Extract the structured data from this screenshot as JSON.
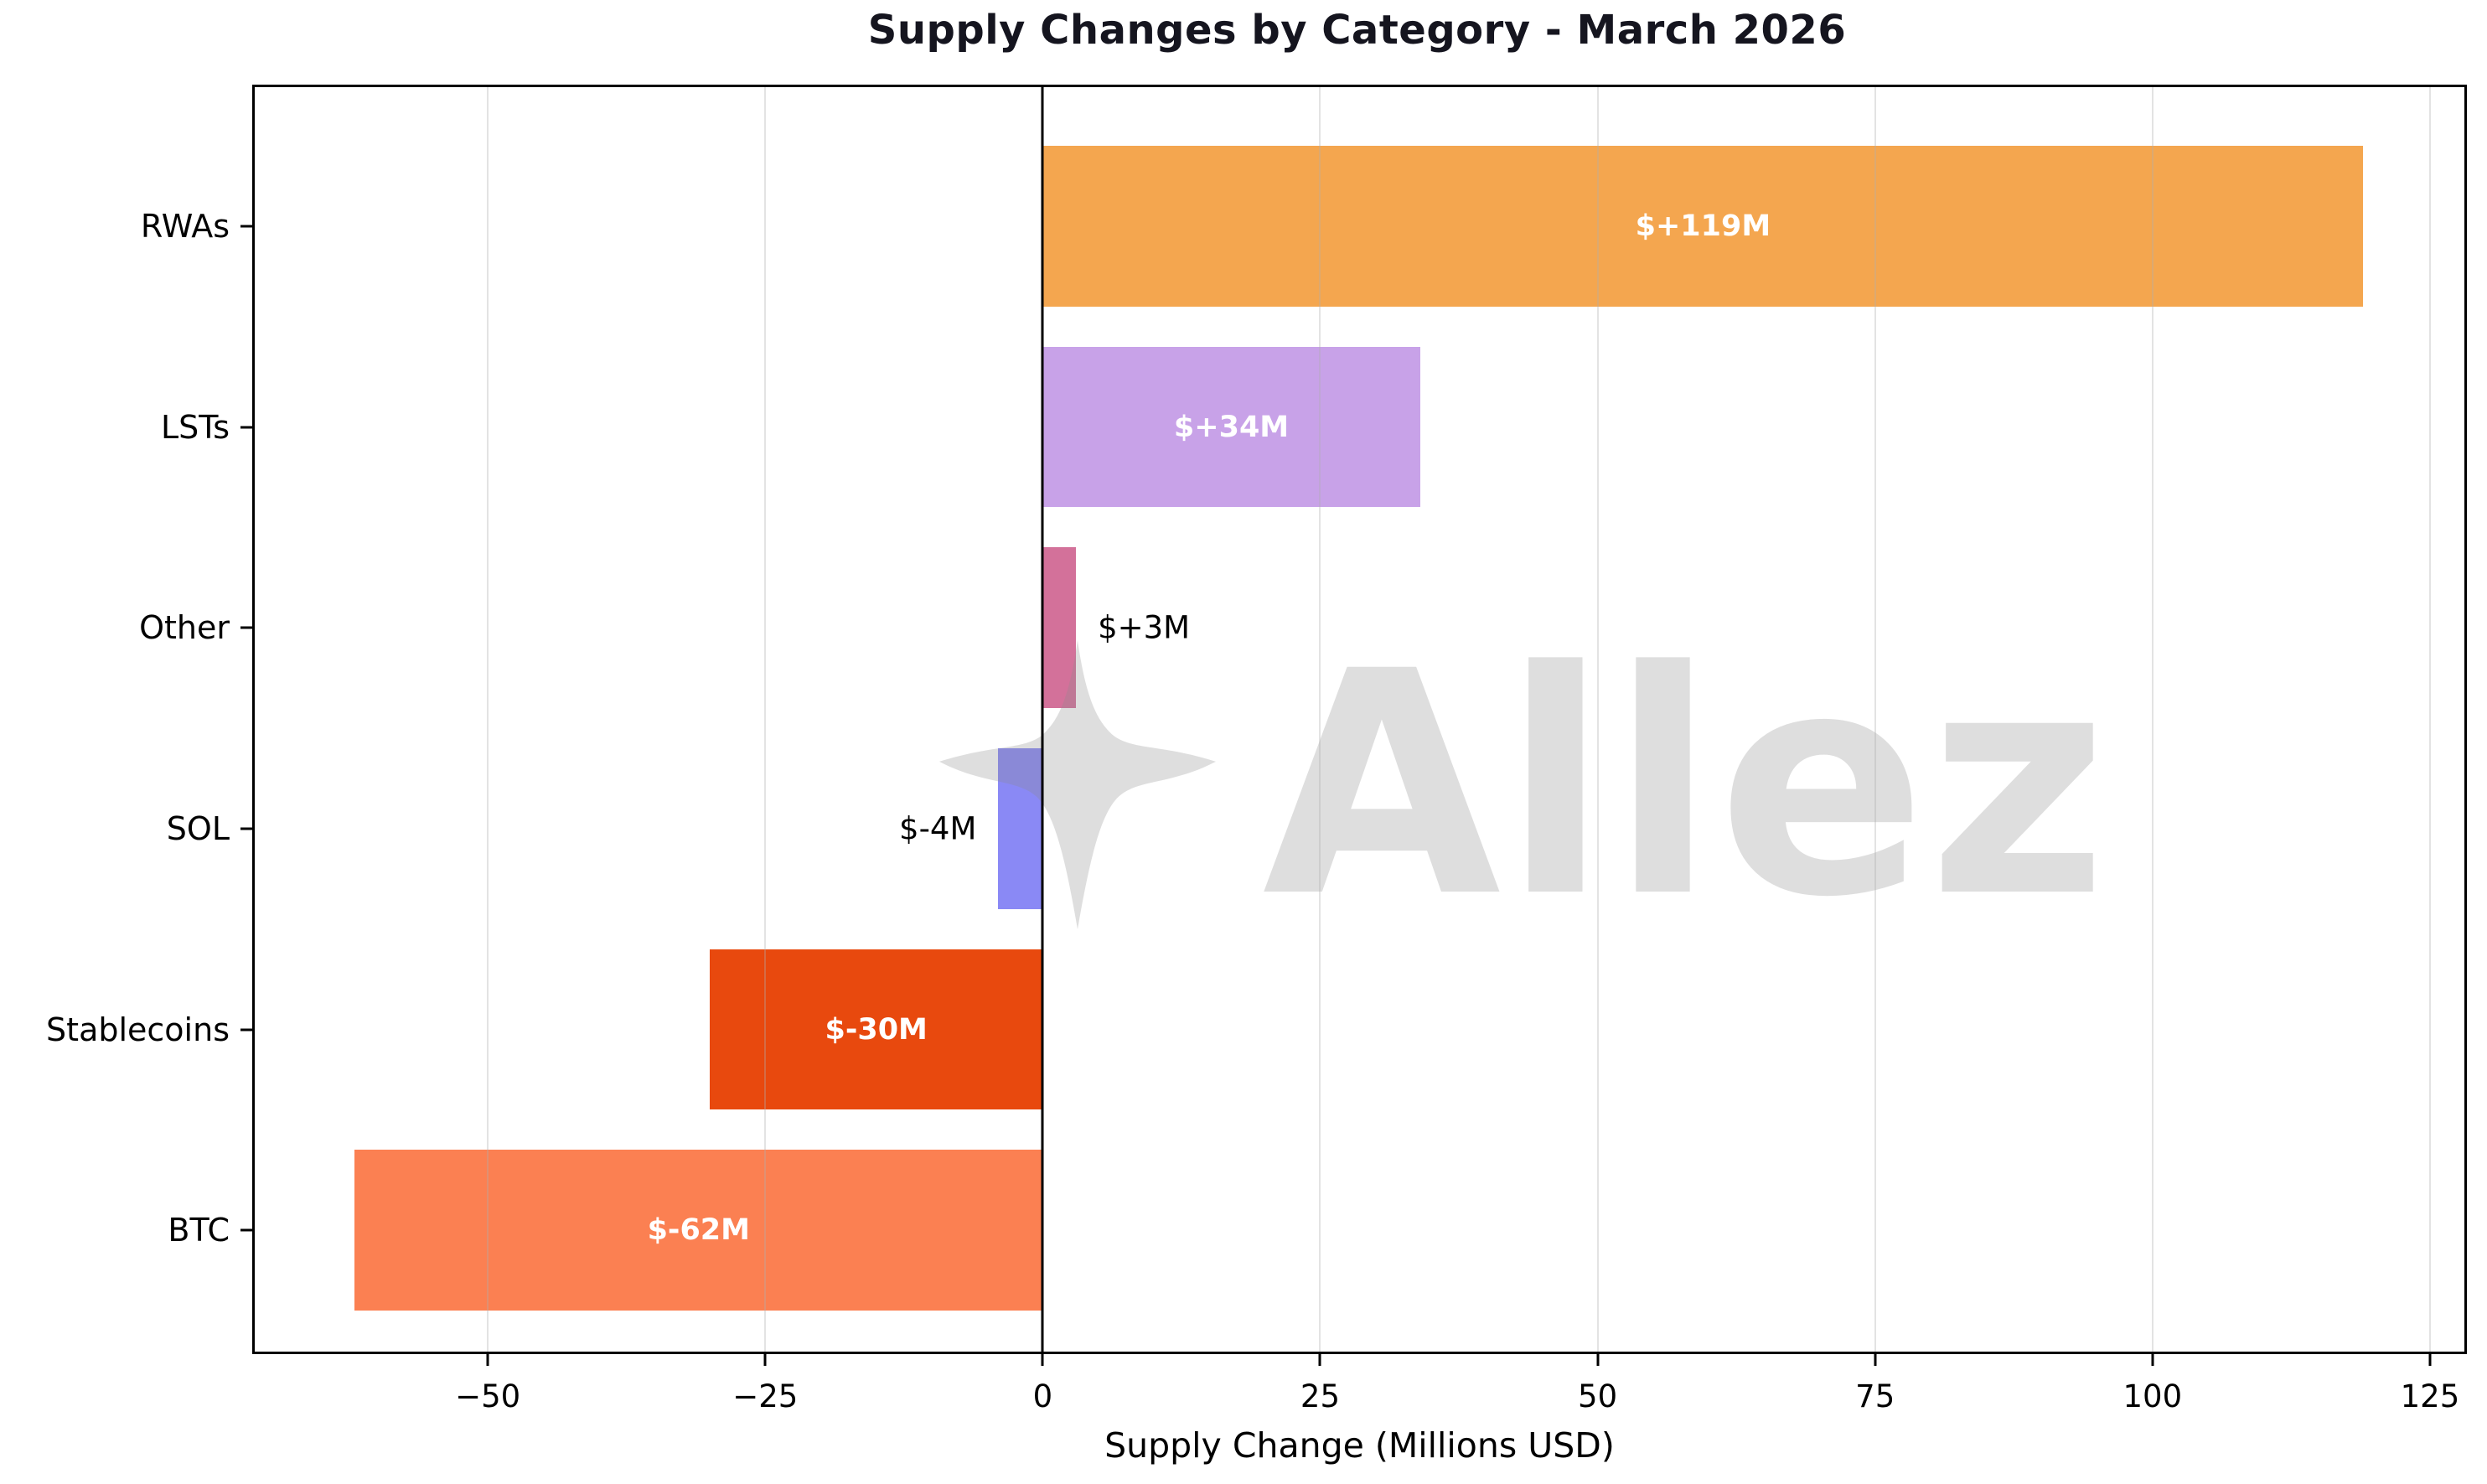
{
  "chart_data": {
    "type": "bar",
    "orientation": "horizontal",
    "title": "Supply Changes by Category - March 2026",
    "xlabel": "Supply Change (Millions USD)",
    "watermark": "Allez",
    "grid": true,
    "legend": "none",
    "xlim": [
      -71,
      128.1
    ],
    "x_ticks": [
      {
        "value": -50,
        "label": "−50"
      },
      {
        "value": -25,
        "label": "−25"
      },
      {
        "value": 0,
        "label": "0"
      },
      {
        "value": 25,
        "label": "25"
      },
      {
        "value": 50,
        "label": "50"
      },
      {
        "value": 75,
        "label": "75"
      },
      {
        "value": 100,
        "label": "100"
      },
      {
        "value": 125,
        "label": "125"
      }
    ],
    "categories": [
      "RWAs",
      "LSTs",
      "Other",
      "SOL",
      "Stablecoins",
      "BTC"
    ],
    "values": [
      119,
      34,
      3,
      -4,
      -30,
      -62
    ],
    "points": [
      {
        "category": "RWAs",
        "value": 119,
        "label": "$+119M",
        "color": "#f4a64f",
        "label_placement": "inside"
      },
      {
        "category": "LSTs",
        "value": 34,
        "label": "$+34M",
        "color": "#c8a2e8",
        "label_placement": "inside"
      },
      {
        "category": "Other",
        "value": 3,
        "label": "$+3M",
        "color": "#d3719a",
        "label_placement": "outside"
      },
      {
        "category": "SOL",
        "value": -4,
        "label": "$-4M",
        "color": "#8a89f5",
        "label_placement": "outside"
      },
      {
        "category": "Stablecoins",
        "value": -30,
        "label": "$-30M",
        "color": "#e8490e",
        "label_placement": "inside"
      },
      {
        "category": "BTC",
        "value": -62,
        "label": "$-62M",
        "color": "#fb8052",
        "label_placement": "inside"
      }
    ],
    "colors": {
      "axis": "#000000",
      "title_text": "#15151f",
      "grid_line": "#afafaf",
      "inside_label_text": "#ffffff",
      "outside_label_text": "#000000",
      "watermark_gray": "#8c8c8c"
    }
  }
}
